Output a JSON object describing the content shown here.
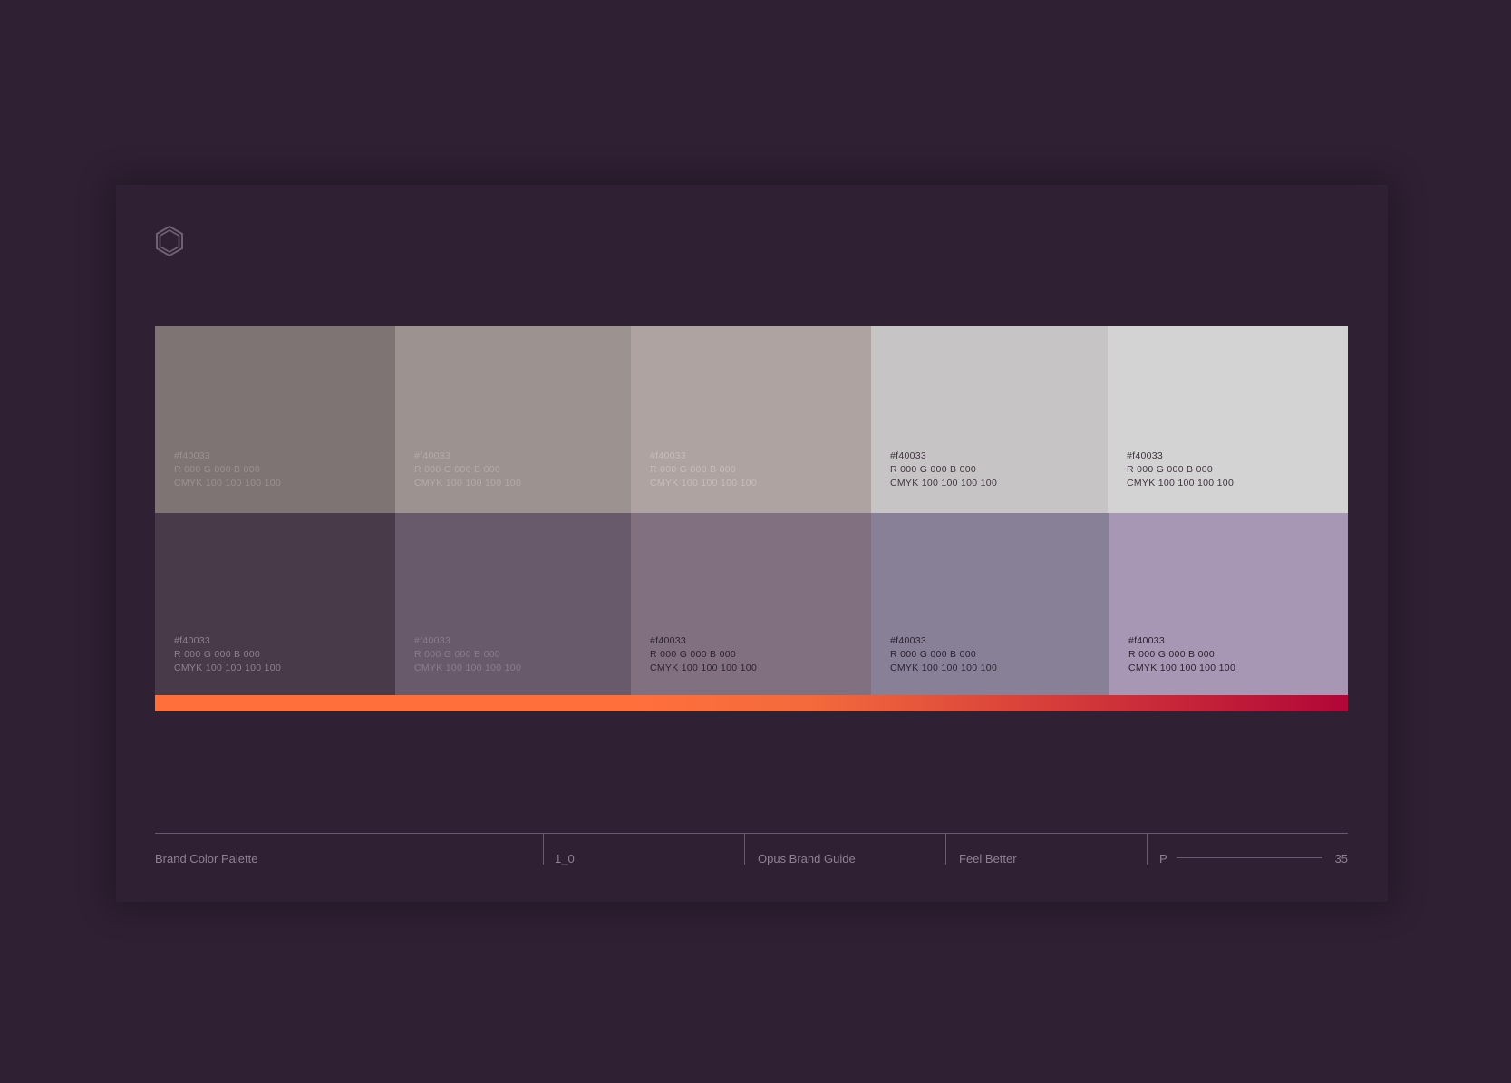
{
  "logo": {
    "icon": "hexagon-logo-icon"
  },
  "palette": {
    "top_row": [
      {
        "bg": "#7f7474",
        "text_color": "#9c9090",
        "hex": "#f40033",
        "rgb": "R 000 G 000 B 000",
        "cmyk": "CMYK 100 100 100 100"
      },
      {
        "bg": "#9c9290",
        "text_color": "#b4aaa8",
        "hex": "#f40033",
        "rgb": "R 000 G 000 B 000",
        "cmyk": "CMYK 100 100 100 100"
      },
      {
        "bg": "#aea3a1",
        "text_color": "#c6bcba",
        "hex": "#f40033",
        "rgb": "R 000 G 000 B 000",
        "cmyk": "CMYK 100 100 100 100"
      },
      {
        "bg": "#c7c4c5",
        "text_color": "#403540",
        "hex": "#f40033",
        "rgb": "R 000 G 000 B 000",
        "cmyk": "CMYK 100 100 100 100"
      },
      {
        "bg": "#d3d3d3",
        "text_color": "#403540",
        "hex": "#f40033",
        "rgb": "R 000 G 000 B 000",
        "cmyk": "CMYK 100 100 100 100"
      }
    ],
    "bottom_row": [
      {
        "bg": "#483a49",
        "text_color": "#8e8190",
        "hex": "#f40033",
        "rgb": "R 000 G 000 B 000",
        "cmyk": "CMYK 100 100 100 100"
      },
      {
        "bg": "#685a6b",
        "text_color": "#8a7c8d",
        "hex": "#f40033",
        "rgb": "R 000 G 000 B 000",
        "cmyk": "CMYK 100 100 100 100"
      },
      {
        "bg": "#817180",
        "text_color": "#2e2231",
        "hex": "#f40033",
        "rgb": "R 000 G 000 B 000",
        "cmyk": "CMYK 100 100 100 100"
      },
      {
        "bg": "#878096",
        "text_color": "#2e2231",
        "hex": "#f40033",
        "rgb": "R 000 G 000 B 000",
        "cmyk": "CMYK 100 100 100 100"
      },
      {
        "bg": "#a797b4",
        "text_color": "#2e2231",
        "hex": "#f40033",
        "rgb": "R 000 G 000 B 000",
        "cmyk": "CMYK 100 100 100 100"
      }
    ],
    "gradient": {
      "start": "#ff6f3c",
      "mid": "#f36a3c",
      "end": "#b10637"
    }
  },
  "footer": {
    "section": "Brand Color Palette",
    "version": "1_0",
    "guide": "Opus Brand Guide",
    "tagline": "Feel Better",
    "page_prefix": "P",
    "page_number": "35"
  }
}
